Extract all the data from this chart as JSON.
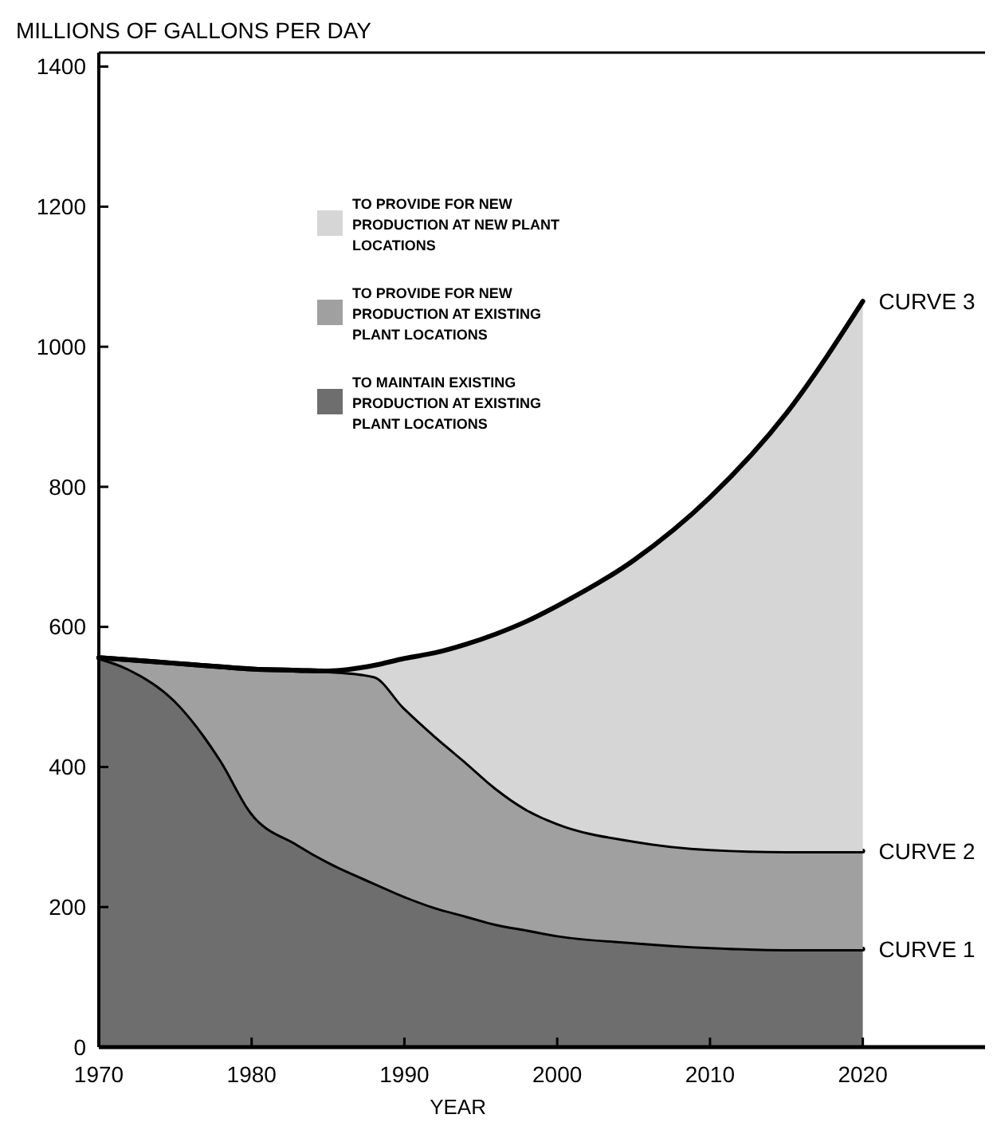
{
  "chart_data": {
    "type": "area",
    "stacked": true,
    "ylabel": "MILLIONS OF GALLONS PER DAY",
    "xlabel": "YEAR",
    "x": [
      1970,
      1972,
      1975,
      1978,
      1980,
      1983,
      1985,
      1988,
      1990,
      1992,
      1994,
      1996,
      1998,
      2000,
      2005,
      2010,
      2015,
      2020
    ],
    "xlim": [
      1970,
      2028
    ],
    "xticks": [
      1970,
      1980,
      1990,
      2000,
      2010,
      2020
    ],
    "ylim": [
      0,
      1420
    ],
    "yticks": [
      0,
      200,
      400,
      600,
      800,
      1000,
      1200,
      1400
    ],
    "legend": "top left",
    "grid": false,
    "series": [
      {
        "name": "TO MAINTAIN EXISTING PRODUCTION AT EXISTING PLANT LOCATIONS",
        "color": "#6e6e6e",
        "values": [
          556,
          540,
          495,
          410,
          335,
          290,
          265,
          235,
          216,
          200,
          188,
          176,
          168,
          160,
          150,
          143,
          140,
          140
        ]
      },
      {
        "name": "TO PROVIDE FOR NEW PRODUCTION AT EXISTING PLANT LOCATIONS",
        "color": "#a0a0a0",
        "values": [
          0,
          13,
          53,
          133,
          205,
          248,
          272,
          295,
          269,
          245,
          220,
          194,
          172,
          160,
          145,
          140,
          140,
          140
        ]
      },
      {
        "name": "TO PROVIDE FOR NEW PRODUCTION AT NEW PLANT LOCATIONS",
        "color": "#d6d6d6",
        "values": [
          0,
          0,
          0,
          0,
          0,
          0,
          0,
          15,
          70,
          118,
          167,
          220,
          268,
          310,
          400,
          502,
          625,
          785
        ]
      }
    ],
    "annotations": [
      "CURVE 3",
      "CURVE 2",
      "CURVE 1"
    ]
  }
}
